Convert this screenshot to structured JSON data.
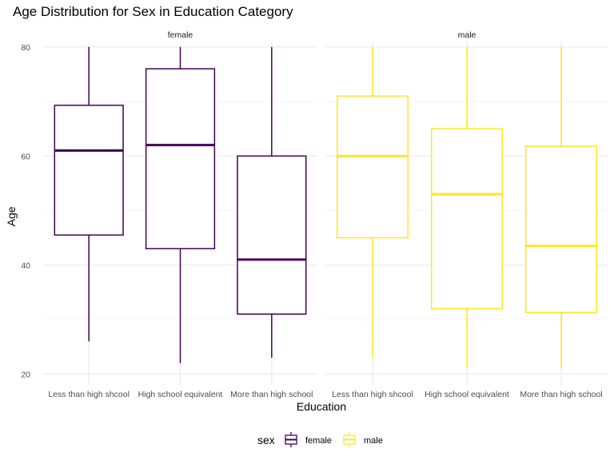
{
  "chart_data": {
    "type": "boxplot",
    "title": "Age Distribution for Sex in Education Category",
    "xlabel": "Education",
    "ylabel": "Age",
    "ylim": [
      18,
      81
    ],
    "yticks": [
      20,
      40,
      60,
      80
    ],
    "grid": true,
    "legend_position": "bottom",
    "legend_title": "sex",
    "categories": [
      "Less than high shcool",
      "High school equivalent",
      "More than high school"
    ],
    "facets": [
      {
        "label": "female",
        "color": "#440154",
        "boxes": [
          {
            "min": 26,
            "q1": 45.5,
            "median": 61,
            "q3": 69.3,
            "max": 80
          },
          {
            "min": 22,
            "q1": 43,
            "median": 62,
            "q3": 76,
            "max": 80
          },
          {
            "min": 23,
            "q1": 31,
            "median": 41,
            "q3": 60,
            "max": 80
          }
        ]
      },
      {
        "label": "male",
        "color": "#FDE725",
        "boxes": [
          {
            "min": 23,
            "q1": 45,
            "median": 60,
            "q3": 71,
            "max": 80
          },
          {
            "min": 21,
            "q1": 32,
            "median": 53,
            "q3": 65,
            "max": 80
          },
          {
            "min": 21,
            "q1": 31.3,
            "median": 43.5,
            "q3": 61.8,
            "max": 80
          }
        ]
      }
    ],
    "legend": [
      {
        "label": "female",
        "color": "#440154"
      },
      {
        "label": "male",
        "color": "#FDE725"
      }
    ]
  }
}
